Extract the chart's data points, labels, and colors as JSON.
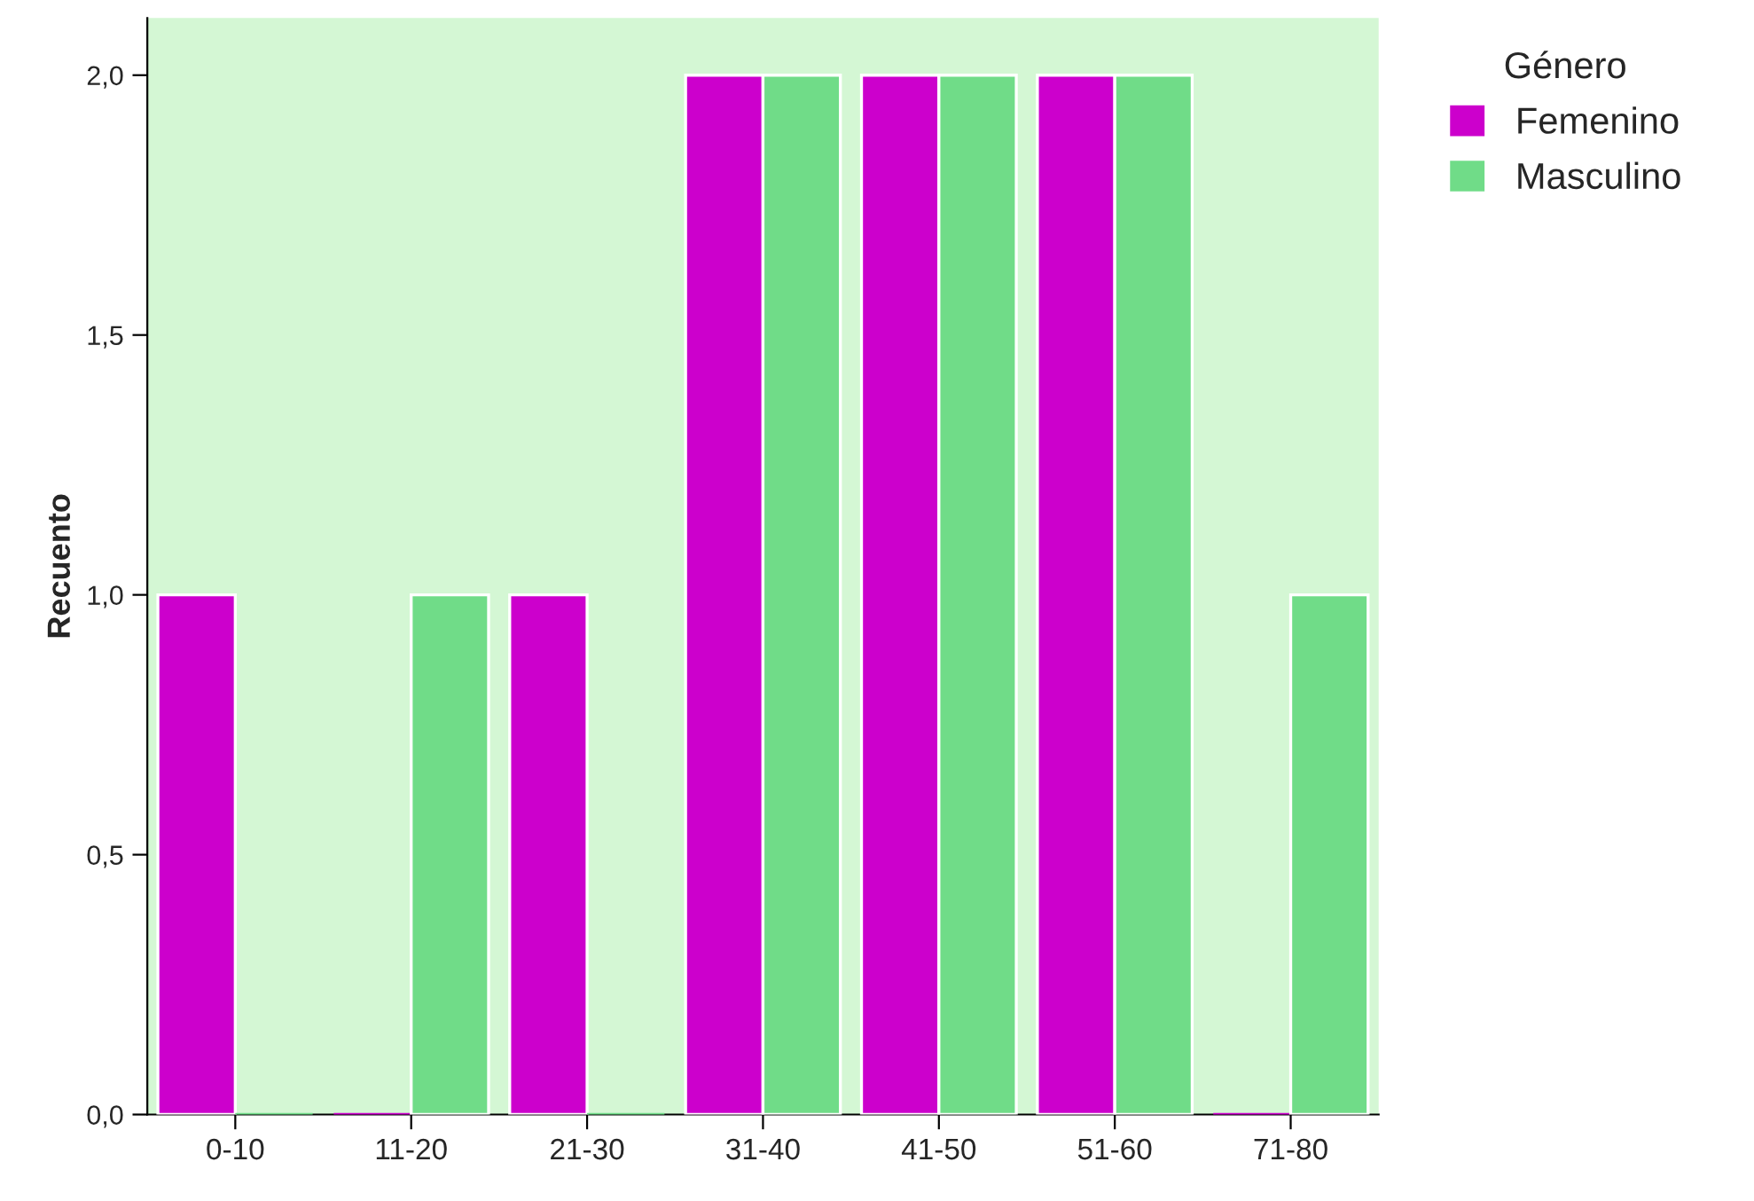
{
  "chart_data": {
    "type": "bar",
    "ylabel": "Recuento",
    "legend_title": "Género",
    "legend": "top right",
    "grid": false,
    "categories": [
      "0-10",
      "11-20",
      "21-30",
      "31-40",
      "41-50",
      "51-60",
      "71-80"
    ],
    "series": [
      {
        "name": "Femenino",
        "color": "#cc00cc",
        "values": [
          1,
          0,
          1,
          2,
          2,
          2,
          0
        ]
      },
      {
        "name": "Masculino",
        "color": "#70dc88",
        "values": [
          0,
          1,
          0,
          2,
          2,
          2,
          1
        ]
      }
    ],
    "ylim": [
      0,
      2.11
    ],
    "yticks": [
      {
        "value": 0,
        "label": "0,0"
      },
      {
        "value": 0.5,
        "label": "0,5"
      },
      {
        "value": 1,
        "label": "1,0"
      },
      {
        "value": 1.5,
        "label": "1,5"
      },
      {
        "value": 2,
        "label": "2,0"
      }
    ]
  }
}
